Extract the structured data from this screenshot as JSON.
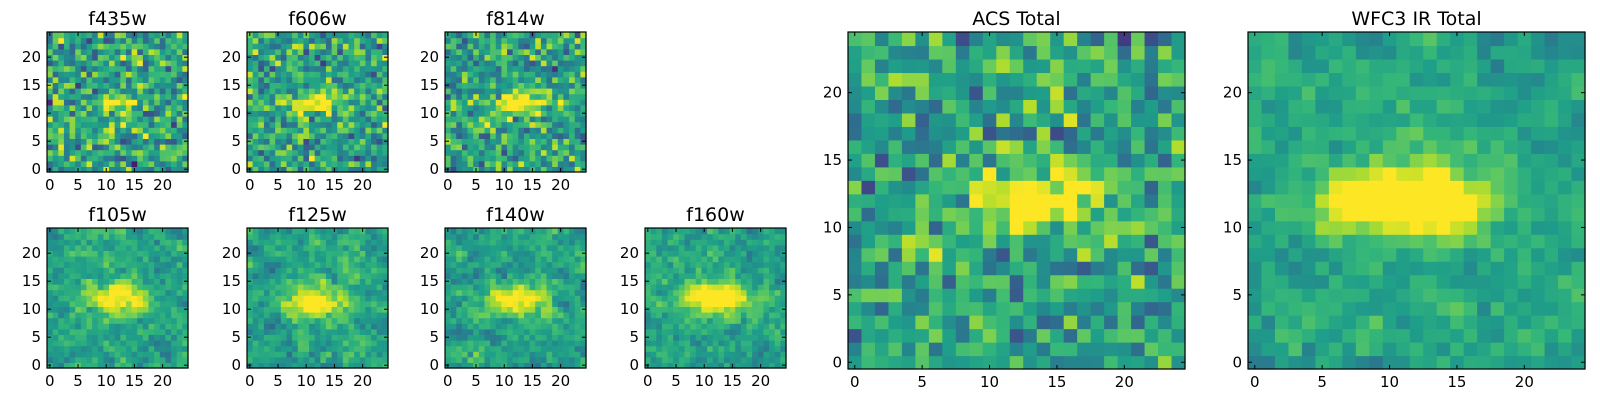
{
  "figure": {
    "colormap": "viridis",
    "panels": [
      {
        "id": "f435w",
        "title": "f435w",
        "xticks": [
          "0",
          "5",
          "10",
          "15",
          "20"
        ],
        "yticks": [
          "0",
          "5",
          "10",
          "15",
          "20"
        ]
      },
      {
        "id": "f606w",
        "title": "f606w",
        "xticks": [
          "0",
          "5",
          "10",
          "15",
          "20"
        ],
        "yticks": [
          "0",
          "5",
          "10",
          "15",
          "20"
        ]
      },
      {
        "id": "f814w",
        "title": "f814w",
        "xticks": [
          "0",
          "5",
          "10",
          "15",
          "20"
        ],
        "yticks": [
          "0",
          "5",
          "10",
          "15",
          "20"
        ]
      },
      {
        "id": "f105w",
        "title": "f105w",
        "xticks": [
          "0",
          "5",
          "10",
          "15",
          "20"
        ],
        "yticks": [
          "0",
          "5",
          "10",
          "15",
          "20"
        ]
      },
      {
        "id": "f125w",
        "title": "f125w",
        "xticks": [
          "0",
          "5",
          "10",
          "15",
          "20"
        ],
        "yticks": [
          "0",
          "5",
          "10",
          "15",
          "20"
        ]
      },
      {
        "id": "f140w",
        "title": "f140w",
        "xticks": [
          "0",
          "5",
          "10",
          "15",
          "20"
        ],
        "yticks": [
          "0",
          "5",
          "10",
          "15",
          "20"
        ]
      },
      {
        "id": "f160w",
        "title": "f160w",
        "xticks": [
          "0",
          "5",
          "10",
          "15",
          "20"
        ],
        "yticks": [
          "0",
          "5",
          "10",
          "15",
          "20"
        ]
      },
      {
        "id": "acs-total",
        "title": "ACS Total",
        "xticks": [
          "0",
          "5",
          "10",
          "15",
          "20"
        ],
        "yticks": [
          "0",
          "5",
          "10",
          "15",
          "20"
        ]
      },
      {
        "id": "wfc3-ir-total",
        "title": "WFC3 IR Total",
        "xticks": [
          "0",
          "5",
          "10",
          "15",
          "20"
        ],
        "yticks": [
          "0",
          "5",
          "10",
          "15",
          "20"
        ]
      }
    ]
  },
  "chart_data": [
    {
      "type": "heatmap",
      "title": "f435w",
      "grid_size": [
        25,
        25
      ],
      "xlim": [
        0,
        24
      ],
      "ylim": [
        0,
        24
      ],
      "source": {
        "x": 12.5,
        "y": 12,
        "sx": 3.2,
        "sy": 1.3,
        "amp": 0.35
      },
      "noise": 0.34,
      "smooth": 0,
      "seed": 11
    },
    {
      "type": "heatmap",
      "title": "f606w",
      "grid_size": [
        25,
        25
      ],
      "xlim": [
        0,
        24
      ],
      "ylim": [
        0,
        24
      ],
      "source": {
        "x": 12,
        "y": 12,
        "sx": 3.5,
        "sy": 1.3,
        "amp": 0.45
      },
      "noise": 0.3,
      "smooth": 0,
      "seed": 23
    },
    {
      "type": "heatmap",
      "title": "f814w",
      "grid_size": [
        25,
        25
      ],
      "xlim": [
        0,
        24
      ],
      "ylim": [
        0,
        24
      ],
      "source": {
        "x": 13,
        "y": 12,
        "sx": 3.3,
        "sy": 1.4,
        "amp": 0.55
      },
      "noise": 0.3,
      "smooth": 0,
      "seed": 37
    },
    {
      "type": "heatmap",
      "title": "f105w",
      "grid_size": [
        25,
        25
      ],
      "xlim": [
        0,
        24
      ],
      "ylim": [
        0,
        24
      ],
      "source": {
        "x": 12,
        "y": 12,
        "sx": 3.6,
        "sy": 1.8,
        "amp": 0.55
      },
      "noise": 0.26,
      "smooth": 1,
      "seed": 41
    },
    {
      "type": "heatmap",
      "title": "f125w",
      "grid_size": [
        25,
        25
      ],
      "xlim": [
        0,
        24
      ],
      "ylim": [
        0,
        24
      ],
      "source": {
        "x": 11.5,
        "y": 11.5,
        "sx": 3.6,
        "sy": 2.0,
        "amp": 0.55
      },
      "noise": 0.27,
      "smooth": 1,
      "seed": 53
    },
    {
      "type": "heatmap",
      "title": "f140w",
      "grid_size": [
        25,
        25
      ],
      "xlim": [
        0,
        24
      ],
      "ylim": [
        0,
        24
      ],
      "source": {
        "x": 12,
        "y": 12,
        "sx": 4.0,
        "sy": 1.7,
        "amp": 0.55
      },
      "noise": 0.27,
      "smooth": 1,
      "seed": 67
    },
    {
      "type": "heatmap",
      "title": "f160w",
      "grid_size": [
        25,
        25
      ],
      "xlim": [
        0,
        24
      ],
      "ylim": [
        0,
        24
      ],
      "source": {
        "x": 12,
        "y": 12,
        "sx": 4.2,
        "sy": 1.8,
        "amp": 0.65
      },
      "noise": 0.25,
      "smooth": 1,
      "seed": 79
    },
    {
      "type": "heatmap",
      "title": "ACS Total",
      "grid_size": [
        25,
        25
      ],
      "xlim": [
        0,
        24
      ],
      "ylim": [
        0,
        24
      ],
      "source": {
        "x": 13.5,
        "y": 12,
        "sx": 3.6,
        "sy": 1.4,
        "amp": 0.65
      },
      "noise": 0.28,
      "smooth": 0,
      "seed": 89
    },
    {
      "type": "heatmap",
      "title": "WFC3 IR Total",
      "grid_size": [
        25,
        25
      ],
      "xlim": [
        0,
        24
      ],
      "ylim": [
        0,
        24
      ],
      "source": {
        "x": 11.5,
        "y": 12,
        "sx": 4.3,
        "sy": 1.8,
        "amp": 0.75
      },
      "noise": 0.22,
      "smooth": 1,
      "seed": 97
    }
  ]
}
